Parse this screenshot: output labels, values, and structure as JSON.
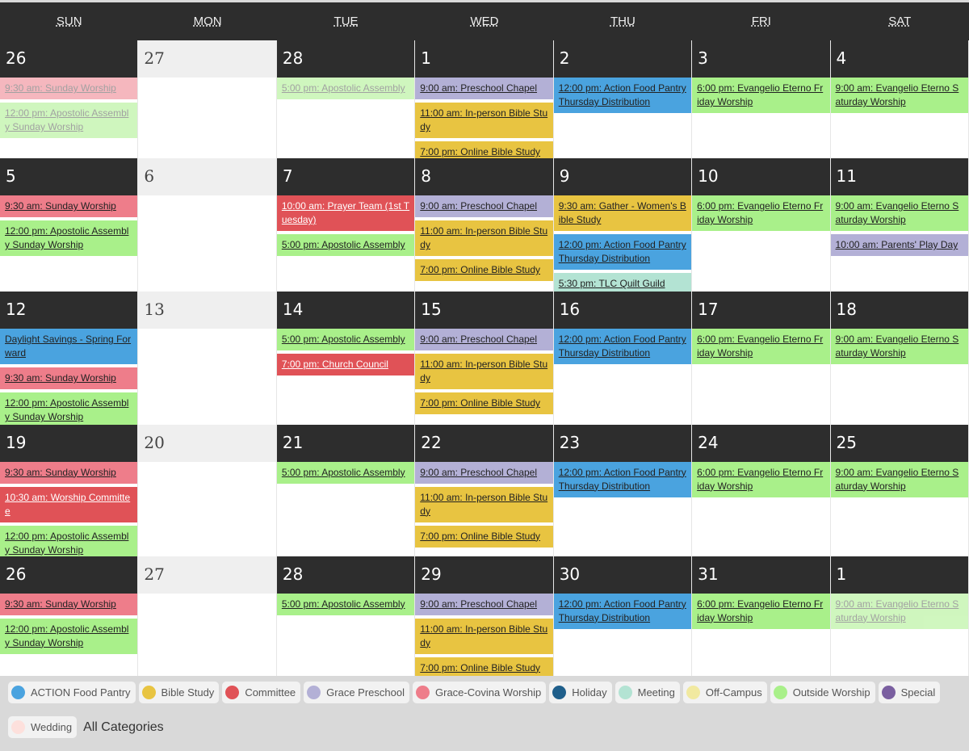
{
  "weekdays": [
    "SUN",
    "MON",
    "TUE",
    "WED",
    "THU",
    "FRI",
    "SAT"
  ],
  "weeks": [
    {
      "days": [
        {
          "number": 26,
          "faded": true,
          "events": [
            {
              "text": "9:30 am: Sunday Worship",
              "color": "#ee7d8a"
            },
            {
              "text": "12:00 pm: Apostolic Assembly Sunday Worship",
              "color": "#a9f08a"
            }
          ]
        },
        {
          "number": 27,
          "events": []
        },
        {
          "number": 28,
          "faded": true,
          "events": [
            {
              "text": "5:00 pm: Apostolic Assembly",
              "color": "#a9f08a"
            }
          ]
        },
        {
          "number": 1,
          "events": [
            {
              "text": "9:00 am: Preschool Chapel",
              "color": "#b3b0d6"
            },
            {
              "text": "11:00 am: In-person Bible Study",
              "color": "#e8c441"
            },
            {
              "text": "7:00 pm: Online Bible Study",
              "color": "#e8c441"
            }
          ]
        },
        {
          "number": 2,
          "events": [
            {
              "text": "12:00 pm: Action Food Pantry Thursday Distribution",
              "color": "#4aa3df"
            }
          ]
        },
        {
          "number": 3,
          "events": [
            {
              "text": "6:00 pm: Evangelio Eterno Friday Worship",
              "color": "#a9f08a"
            }
          ]
        },
        {
          "number": 4,
          "events": [
            {
              "text": "9:00 am: Evangelio Eterno Saturday Worship",
              "color": "#a9f08a"
            }
          ]
        }
      ]
    },
    {
      "days": [
        {
          "number": 5,
          "events": [
            {
              "text": "9:30 am: Sunday Worship",
              "color": "#ee7d8a"
            },
            {
              "text": "12:00 pm: Apostolic Assembly Sunday Worship",
              "color": "#a9f08a"
            }
          ]
        },
        {
          "number": 6,
          "events": []
        },
        {
          "number": 7,
          "events": [
            {
              "text": "10:00 am: Prayer Team (1st Tuesday)",
              "color": "#e05257"
            },
            {
              "text": "5:00 pm: Apostolic Assembly",
              "color": "#a9f08a"
            }
          ]
        },
        {
          "number": 8,
          "events": [
            {
              "text": "9:00 am: Preschool Chapel",
              "color": "#b3b0d6"
            },
            {
              "text": "11:00 am: In-person Bible Study",
              "color": "#e8c441"
            },
            {
              "text": "7:00 pm: Online Bible Study",
              "color": "#e8c441"
            }
          ]
        },
        {
          "number": 9,
          "events": [
            {
              "text": "9:30 am: Gather - Women's Bible Study",
              "color": "#e8c441"
            },
            {
              "text": "12:00 pm: Action Food Pantry Thursday Distribution",
              "color": "#4aa3df"
            },
            {
              "text": "5:30 pm: TLC Quilt Guild",
              "color": "#b3e3d3"
            }
          ]
        },
        {
          "number": 10,
          "events": [
            {
              "text": "6:00 pm: Evangelio Eterno Friday Worship",
              "color": "#a9f08a"
            }
          ]
        },
        {
          "number": 11,
          "events": [
            {
              "text": "9:00 am: Evangelio Eterno Saturday Worship",
              "color": "#a9f08a"
            },
            {
              "text": "10:00 am: Parents' Play Day",
              "color": "#b3b0d6"
            }
          ]
        }
      ]
    },
    {
      "days": [
        {
          "number": 12,
          "events": [
            {
              "text": "Daylight Savings - Spring Forward",
              "color": "#4aa3df"
            },
            {
              "text": "9:30 am: Sunday Worship",
              "color": "#ee7d8a"
            },
            {
              "text": "12:00 pm: Apostolic Assembly Sunday Worship",
              "color": "#a9f08a"
            }
          ]
        },
        {
          "number": 13,
          "events": []
        },
        {
          "number": 14,
          "events": [
            {
              "text": "5:00 pm: Apostolic Assembly",
              "color": "#a9f08a"
            },
            {
              "text": "7:00 pm: Church Council",
              "color": "#e05257"
            }
          ]
        },
        {
          "number": 15,
          "events": [
            {
              "text": "9:00 am: Preschool Chapel",
              "color": "#b3b0d6"
            },
            {
              "text": "11:00 am: In-person Bible Study",
              "color": "#e8c441"
            },
            {
              "text": "7:00 pm: Online Bible Study",
              "color": "#e8c441"
            }
          ]
        },
        {
          "number": 16,
          "events": [
            {
              "text": "12:00 pm: Action Food Pantry Thursday Distribution",
              "color": "#4aa3df"
            }
          ]
        },
        {
          "number": 17,
          "events": [
            {
              "text": "6:00 pm: Evangelio Eterno Friday Worship",
              "color": "#a9f08a"
            }
          ]
        },
        {
          "number": 18,
          "events": [
            {
              "text": "9:00 am: Evangelio Eterno Saturday Worship",
              "color": "#a9f08a"
            }
          ]
        }
      ]
    },
    {
      "days": [
        {
          "number": 19,
          "events": [
            {
              "text": "9:30 am: Sunday Worship",
              "color": "#ee7d8a"
            },
            {
              "text": "10:30 am: Worship Committee",
              "color": "#e05257"
            },
            {
              "text": "12:00 pm: Apostolic Assembly Sunday Worship",
              "color": "#a9f08a"
            }
          ]
        },
        {
          "number": 20,
          "events": []
        },
        {
          "number": 21,
          "events": [
            {
              "text": "5:00 pm: Apostolic Assembly",
              "color": "#a9f08a"
            }
          ]
        },
        {
          "number": 22,
          "events": [
            {
              "text": "9:00 am: Preschool Chapel",
              "color": "#b3b0d6"
            },
            {
              "text": "11:00 am: In-person Bible Study",
              "color": "#e8c441"
            },
            {
              "text": "7:00 pm: Online Bible Study",
              "color": "#e8c441"
            }
          ]
        },
        {
          "number": 23,
          "events": [
            {
              "text": "12:00 pm: Action Food Pantry Thursday Distribution",
              "color": "#4aa3df"
            }
          ]
        },
        {
          "number": 24,
          "events": [
            {
              "text": "6:00 pm: Evangelio Eterno Friday Worship",
              "color": "#a9f08a"
            }
          ]
        },
        {
          "number": 25,
          "events": [
            {
              "text": "9:00 am: Evangelio Eterno Saturday Worship",
              "color": "#a9f08a"
            }
          ]
        }
      ]
    },
    {
      "days": [
        {
          "number": 26,
          "events": [
            {
              "text": "9:30 am: Sunday Worship",
              "color": "#ee7d8a"
            },
            {
              "text": "12:00 pm: Apostolic Assembly Sunday Worship",
              "color": "#a9f08a"
            }
          ]
        },
        {
          "number": 27,
          "events": []
        },
        {
          "number": 28,
          "events": [
            {
              "text": "5:00 pm: Apostolic Assembly",
              "color": "#a9f08a"
            }
          ]
        },
        {
          "number": 29,
          "events": [
            {
              "text": "9:00 am: Preschool Chapel",
              "color": "#b3b0d6"
            },
            {
              "text": "11:00 am: In-person Bible Study",
              "color": "#e8c441"
            },
            {
              "text": "7:00 pm: Online Bible Study",
              "color": "#e8c441"
            }
          ]
        },
        {
          "number": 30,
          "events": [
            {
              "text": "12:00 pm: Action Food Pantry Thursday Distribution",
              "color": "#4aa3df"
            }
          ]
        },
        {
          "number": 31,
          "events": [
            {
              "text": "6:00 pm: Evangelio Eterno Friday Worship",
              "color": "#a9f08a"
            }
          ]
        },
        {
          "number": 1,
          "faded": true,
          "events": [
            {
              "text": "9:00 am: Evangelio Eterno Saturday Worship",
              "color": "#a9f08a"
            }
          ]
        }
      ]
    }
  ],
  "legend": {
    "items": [
      {
        "label": "ACTION Food Pantry",
        "color": "#4aa3df"
      },
      {
        "label": "Bible Study",
        "color": "#e8c441"
      },
      {
        "label": "Committee",
        "color": "#e05257"
      },
      {
        "label": "Grace Preschool",
        "color": "#b3b0d6"
      },
      {
        "label": "Grace-Covina Worship",
        "color": "#ee7d8a"
      },
      {
        "label": "Holiday",
        "color": "#1f5f8b"
      },
      {
        "label": "Meeting",
        "color": "#b3e3d3"
      },
      {
        "label": "Off-Campus",
        "color": "#f1e9a0"
      },
      {
        "label": "Outside Worship",
        "color": "#a9f08a"
      },
      {
        "label": "Special",
        "color": "#7a5fa0"
      },
      {
        "label": "Wedding",
        "color": "#fde0dc"
      }
    ],
    "all_label": "All Categories"
  }
}
